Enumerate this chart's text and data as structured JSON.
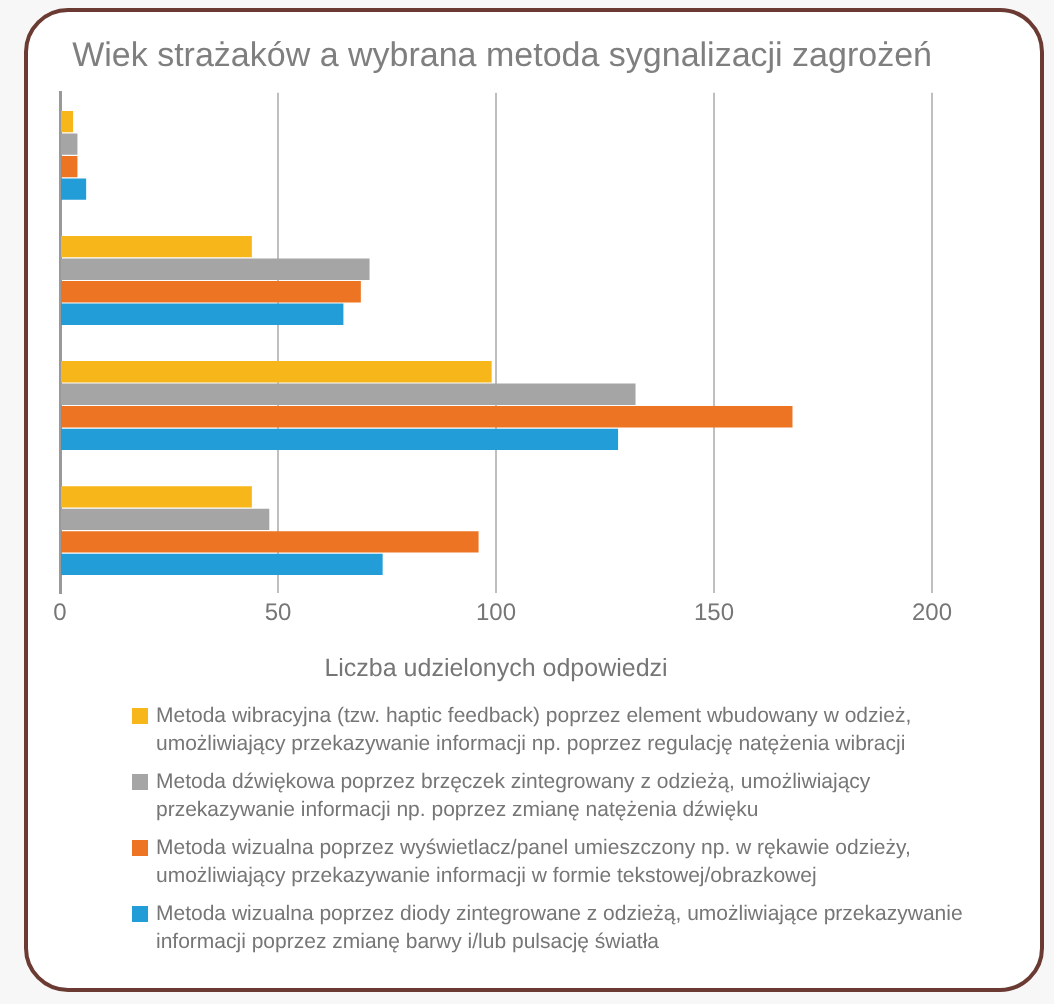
{
  "chart_data": {
    "type": "bar",
    "orientation": "horizontal",
    "title": "Wiek strażaków a wybrana metoda sygnalizacji zagrożeń",
    "xlabel": "Liczba udzielonych odpowiedzi",
    "categories": [
      null,
      null,
      null,
      null
    ],
    "series": [
      {
        "name": "Metoda wibracyjna (tzw. haptic feedback) poprzez element wbudowany w odzież, umożliwiający przekazywanie informacji np. poprzez regulację natężenia wibracji",
        "color": "#f7b619",
        "values": [
          3,
          44,
          99,
          44
        ]
      },
      {
        "name": "Metoda dźwiękowa poprzez brzęczek zintegrowany z odzieżą, umożliwiający przekazywanie informacji np. poprzez zmianę natężenia dźwięku",
        "color": "#a5a5a5",
        "values": [
          4,
          71,
          132,
          48
        ]
      },
      {
        "name": "Metoda wizualna poprzez wyświetlacz/panel umieszczony np. w rękawie odzieży, umożliwiający przekazywanie informacji w formie tekstowej/obrazkowej",
        "color": "#ed7422",
        "values": [
          4,
          69,
          168,
          96
        ]
      },
      {
        "name": "Metoda wizualna poprzez diody zintegrowane z odzieżą, umożliwiające przekazywanie informacji poprzez zmianę barwy i/lub pulsację światła",
        "color": "#239dd8",
        "values": [
          6,
          65,
          128,
          74
        ]
      }
    ],
    "xlim": [
      0,
      200
    ],
    "xticks": [
      0,
      50,
      100,
      150,
      200
    ],
    "grid": "x",
    "legend": "bottom",
    "tick_labels": "x"
  }
}
